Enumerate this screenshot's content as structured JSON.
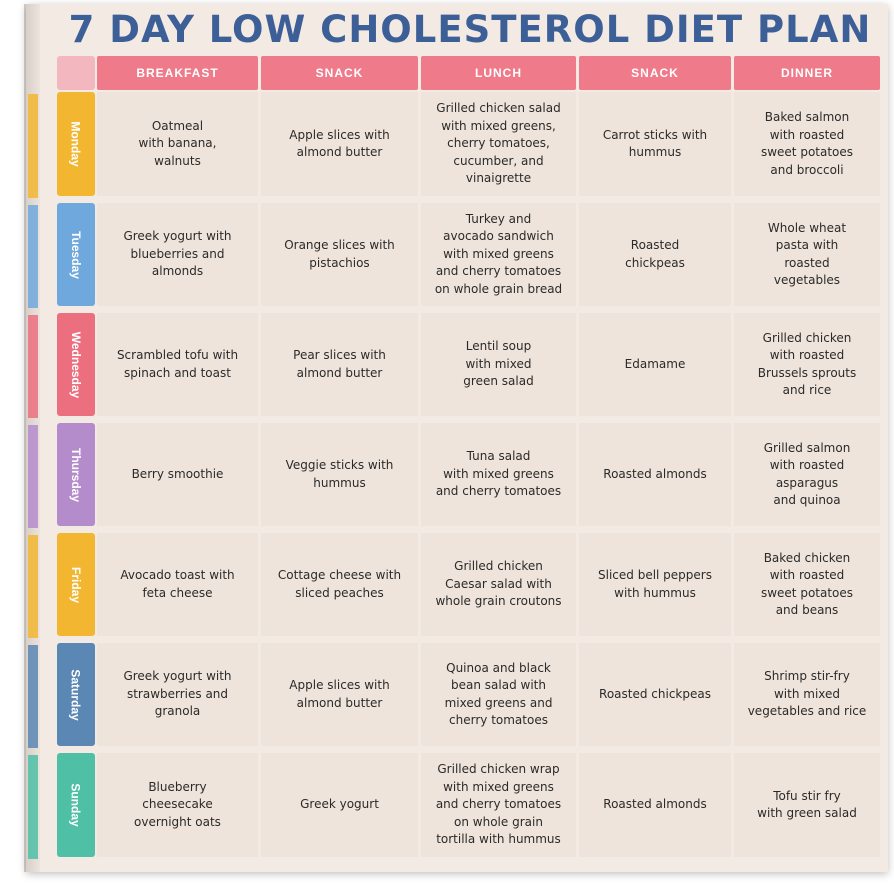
{
  "title": "7 DAY LOW CHOLESTEROL DIET PLAN",
  "columns": [
    "BREAKFAST",
    "SNACK",
    "LUNCH",
    "SNACK",
    "DINNER"
  ],
  "colors": {
    "title": "#3d5f97",
    "header": "#ee7a8a",
    "cell": "#efe4db",
    "monday": "#f2b631",
    "tuesday": "#6fa8dc",
    "wednesday": "#ec6f80",
    "thursday": "#b48ccc",
    "friday": "#f2b631",
    "saturday": "#5b87b4",
    "sunday": "#4fbfa6"
  },
  "days": [
    {
      "name": "Monday",
      "meals": [
        "Oatmeal\nwith banana,\nwalnuts",
        "Apple slices with\nalmond butter",
        "Grilled chicken salad\nwith mixed greens,\ncherry tomatoes,\ncucumber, and\nvinaigrette",
        "Carrot sticks with\nhummus",
        "Baked salmon\nwith roasted\nsweet potatoes\nand broccoli"
      ]
    },
    {
      "name": "Tuesday",
      "meals": [
        "Greek yogurt with\nblueberries and\nalmonds",
        "Orange slices with\npistachios",
        "Turkey and\navocado sandwich\nwith mixed greens\nand cherry tomatoes\non whole grain bread",
        "Roasted\nchickpeas",
        "Whole wheat\npasta with\nroasted\nvegetables"
      ]
    },
    {
      "name": "Wednesday",
      "meals": [
        "Scrambled tofu with\nspinach and toast",
        "Pear slices with\nalmond butter",
        "Lentil soup\nwith mixed\ngreen salad",
        "Edamame",
        "Grilled chicken\nwith roasted\nBrussels sprouts\nand rice"
      ]
    },
    {
      "name": "Thursday",
      "meals": [
        "Berry smoothie",
        "Veggie sticks with\nhummus",
        "Tuna salad\nwith mixed greens\nand cherry tomatoes",
        "Roasted almonds",
        "Grilled salmon\nwith roasted\nasparagus\nand quinoa"
      ]
    },
    {
      "name": "Friday",
      "meals": [
        "Avocado toast with\nfeta cheese",
        "Cottage cheese with\nsliced peaches",
        "Grilled chicken\nCaesar salad with\nwhole grain croutons",
        "Sliced bell peppers\nwith hummus",
        "Baked chicken\nwith roasted\nsweet potatoes\nand beans"
      ]
    },
    {
      "name": "Saturday",
      "meals": [
        "Greek yogurt with\nstrawberries and\ngranola",
        "Apple slices with\nalmond butter",
        "Quinoa and black\nbean salad with\nmixed greens and\ncherry tomatoes",
        "Roasted chickpeas",
        "Shrimp stir-fry\nwith mixed\nvegetables and rice"
      ]
    },
    {
      "name": "Sunday",
      "meals": [
        "Blueberry\ncheesecake\novernight oats",
        "Greek yogurt",
        "Grilled chicken wrap\nwith mixed  greens\nand cherry tomatoes\non  whole grain\ntortilla with hummus",
        "Roasted almonds",
        "Tofu stir fry\nwith green salad"
      ]
    }
  ]
}
